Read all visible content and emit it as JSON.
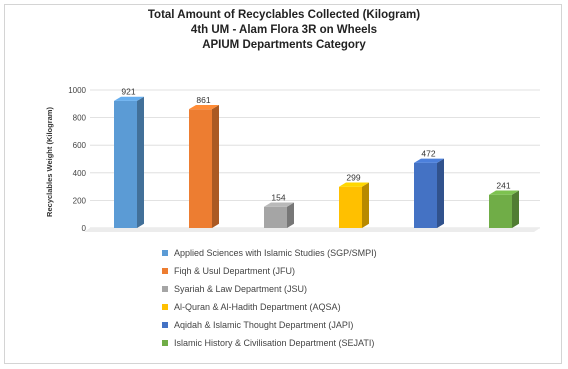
{
  "chart_data": {
    "type": "bar",
    "title": "Total Amount of Recyclables Collected (Kilogram)",
    "subtitle_lines": [
      "4th UM - Alam Flora 3R on Wheels",
      "APIUM Departments Category"
    ],
    "xlabel": "",
    "ylabel": "Recyclables Weight (Kilogram)",
    "ylim": [
      0,
      1000
    ],
    "yticks": [
      0,
      200,
      400,
      600,
      800,
      1000
    ],
    "grid": true,
    "legend_position": "bottom",
    "categories": [
      "Applied Sciences with Islamic Studies (SGP/SMPI)",
      "Fiqh & Usul Department (JFU)",
      "Syariah & Law Department (JSU)",
      "Al-Quran & Al-Hadith Department (AQSA)",
      "Aqidah & Islamic Thought Department (JAPI)",
      "Islamic History & Civilisation Department (SEJATI)"
    ],
    "values": [
      921,
      861,
      154,
      299,
      472,
      241
    ],
    "colors": [
      "#5b9bd5",
      "#ed7d31",
      "#a5a5a5",
      "#ffc000",
      "#4472c4",
      "#70ad47"
    ]
  }
}
